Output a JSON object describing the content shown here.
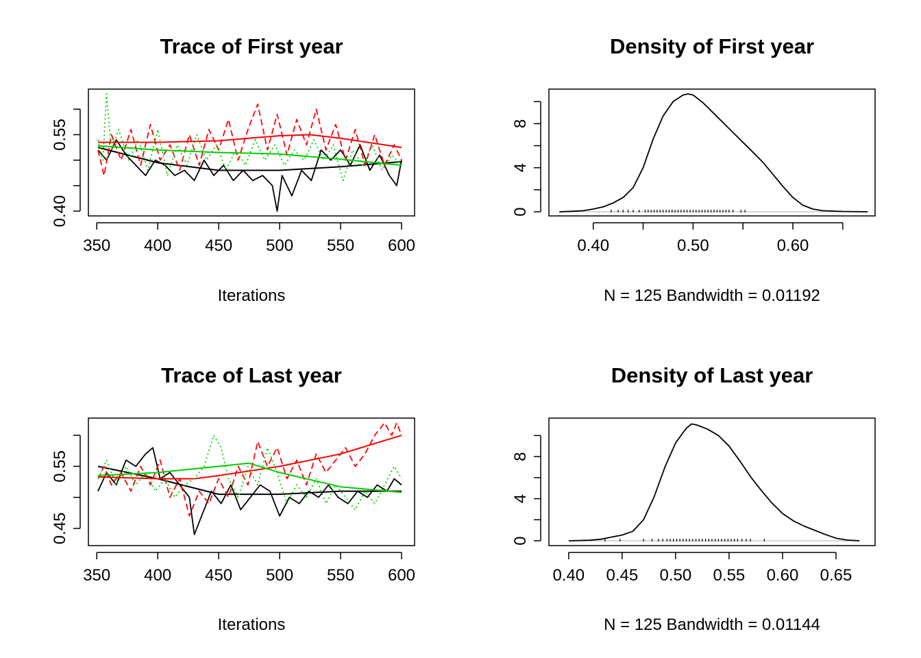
{
  "chart_data": [
    {
      "type": "line",
      "title": "Trace of First year",
      "xlabel": "Iterations",
      "xlim": [
        351,
        600
      ],
      "ylim": [
        0.4,
        0.63
      ],
      "xticks": [
        "350",
        "400",
        "450",
        "500",
        "550",
        "600"
      ],
      "xtick_values": [
        350,
        400,
        450,
        500,
        550,
        600
      ],
      "yticks": [
        "0.40",
        "0.55"
      ],
      "ytick_values": [
        0.4,
        0.55
      ],
      "ytick_marks": [
        0.4,
        0.45,
        0.5,
        0.55,
        0.6
      ],
      "series": [
        {
          "color": "#000000",
          "dash": "solid",
          "x": [
            351,
            358,
            366,
            374,
            382,
            390,
            398,
            406,
            414,
            422,
            430,
            438,
            446,
            454,
            462,
            470,
            478,
            486,
            494,
            498,
            502,
            510,
            518,
            526,
            534,
            542,
            550,
            558,
            566,
            574,
            582,
            590,
            596,
            600
          ],
          "values": [
            0.52,
            0.5,
            0.54,
            0.51,
            0.49,
            0.47,
            0.5,
            0.49,
            0.47,
            0.48,
            0.46,
            0.5,
            0.47,
            0.49,
            0.46,
            0.48,
            0.46,
            0.47,
            0.45,
            0.4,
            0.47,
            0.43,
            0.48,
            0.46,
            0.52,
            0.5,
            0.52,
            0.49,
            0.53,
            0.48,
            0.51,
            0.47,
            0.45,
            0.5
          ],
          "smooth_x": [
            351,
            400,
            450,
            500,
            550,
            600
          ],
          "smooth": [
            0.525,
            0.495,
            0.48,
            0.48,
            0.487,
            0.497
          ]
        },
        {
          "color": "#ff0000",
          "dash": "dashed",
          "x": [
            351,
            356,
            362,
            370,
            378,
            386,
            394,
            402,
            410,
            418,
            426,
            434,
            442,
            450,
            458,
            466,
            474,
            482,
            490,
            498,
            506,
            514,
            522,
            530,
            538,
            546,
            554,
            562,
            570,
            578,
            586,
            594,
            600
          ],
          "values": [
            0.52,
            0.47,
            0.55,
            0.5,
            0.56,
            0.49,
            0.57,
            0.5,
            0.53,
            0.48,
            0.55,
            0.49,
            0.56,
            0.52,
            0.58,
            0.5,
            0.56,
            0.61,
            0.52,
            0.59,
            0.51,
            0.58,
            0.53,
            0.6,
            0.52,
            0.57,
            0.5,
            0.56,
            0.49,
            0.55,
            0.49,
            0.53,
            0.5
          ],
          "smooth_x": [
            351,
            400,
            450,
            500,
            525,
            550,
            600
          ],
          "smooth": [
            0.535,
            0.535,
            0.538,
            0.548,
            0.55,
            0.543,
            0.525
          ]
        },
        {
          "color": "#00cd00",
          "dash": "dotted",
          "x": [
            351,
            355,
            358,
            362,
            368,
            376,
            384,
            392,
            400,
            408,
            416,
            424,
            432,
            440,
            448,
            456,
            464,
            472,
            480,
            488,
            496,
            504,
            512,
            520,
            528,
            536,
            544,
            552,
            560,
            568,
            576,
            584,
            592,
            600
          ],
          "values": [
            0.54,
            0.5,
            0.63,
            0.52,
            0.56,
            0.5,
            0.54,
            0.48,
            0.56,
            0.47,
            0.53,
            0.49,
            0.55,
            0.5,
            0.53,
            0.48,
            0.52,
            0.49,
            0.54,
            0.5,
            0.53,
            0.49,
            0.52,
            0.5,
            0.54,
            0.5,
            0.53,
            0.46,
            0.52,
            0.49,
            0.53,
            0.48,
            0.51,
            0.49
          ],
          "smooth_x": [
            351,
            400,
            450,
            500,
            550,
            600
          ],
          "smooth": [
            0.528,
            0.52,
            0.515,
            0.512,
            0.502,
            0.49
          ]
        }
      ]
    },
    {
      "type": "line",
      "title": "Density of First year",
      "xlabel": "N = 125   Bandwidth = 0.01192",
      "xlim": [
        0.37,
        0.67
      ],
      "ylim": [
        0,
        10.7
      ],
      "xticks": [
        "0.40",
        "0.50",
        "0.60"
      ],
      "xtick_values": [
        0.4,
        0.5,
        0.6
      ],
      "xtick_marks": [
        0.4,
        0.45,
        0.5,
        0.55,
        0.6,
        0.65
      ],
      "yticks": [
        "0",
        "4",
        "8"
      ],
      "ytick_values": [
        0,
        4,
        8
      ],
      "ytick_marks": [
        0,
        2,
        4,
        6,
        8,
        10
      ],
      "series": [
        {
          "color": "#000000",
          "dash": "solid",
          "x": [
            0.366,
            0.38,
            0.39,
            0.4,
            0.41,
            0.42,
            0.43,
            0.44,
            0.45,
            0.46,
            0.47,
            0.48,
            0.49,
            0.495,
            0.5,
            0.51,
            0.52,
            0.53,
            0.54,
            0.55,
            0.56,
            0.57,
            0.58,
            0.59,
            0.6,
            0.61,
            0.62,
            0.63,
            0.65,
            0.675
          ],
          "values": [
            0.0,
            0.05,
            0.1,
            0.25,
            0.45,
            0.8,
            1.3,
            2.2,
            4.0,
            6.6,
            8.7,
            10.0,
            10.6,
            10.7,
            10.6,
            9.9,
            9.0,
            8.1,
            7.2,
            6.3,
            5.4,
            4.5,
            3.4,
            2.3,
            1.3,
            0.6,
            0.25,
            0.1,
            0.03,
            0.0
          ]
        }
      ],
      "rug": [
        0.418,
        0.425,
        0.43,
        0.435,
        0.44,
        0.446,
        0.452,
        0.455,
        0.458,
        0.461,
        0.464,
        0.467,
        0.47,
        0.473,
        0.476,
        0.479,
        0.482,
        0.485,
        0.488,
        0.491,
        0.494,
        0.497,
        0.5,
        0.503,
        0.506,
        0.509,
        0.512,
        0.515,
        0.518,
        0.521,
        0.524,
        0.527,
        0.53,
        0.533,
        0.536,
        0.54,
        0.548,
        0.552
      ]
    },
    {
      "type": "line",
      "title": "Trace of Last year",
      "xlabel": "Iterations",
      "xlim": [
        351,
        600
      ],
      "ylim": [
        0.43,
        0.62
      ],
      "xticks": [
        "350",
        "400",
        "450",
        "500",
        "550",
        "600"
      ],
      "xtick_values": [
        350,
        400,
        450,
        500,
        550,
        600
      ],
      "yticks": [
        "0.45",
        "0.55"
      ],
      "ytick_values": [
        0.45,
        0.55
      ],
      "ytick_marks": [
        0.45,
        0.5,
        0.55,
        0.6
      ],
      "series": [
        {
          "color": "#000000",
          "dash": "solid",
          "x": [
            351,
            358,
            366,
            374,
            382,
            390,
            396,
            402,
            410,
            418,
            426,
            430,
            436,
            444,
            452,
            460,
            468,
            476,
            484,
            492,
            500,
            508,
            516,
            524,
            532,
            540,
            548,
            556,
            564,
            572,
            580,
            588,
            594,
            600
          ],
          "values": [
            0.51,
            0.54,
            0.52,
            0.56,
            0.55,
            0.57,
            0.58,
            0.53,
            0.54,
            0.52,
            0.5,
            0.44,
            0.47,
            0.51,
            0.49,
            0.52,
            0.48,
            0.5,
            0.52,
            0.51,
            0.47,
            0.5,
            0.49,
            0.51,
            0.5,
            0.52,
            0.5,
            0.49,
            0.51,
            0.5,
            0.52,
            0.51,
            0.53,
            0.52
          ],
          "smooth_x": [
            351,
            400,
            450,
            500,
            550,
            600
          ],
          "smooth": [
            0.55,
            0.53,
            0.505,
            0.505,
            0.51,
            0.51
          ]
        },
        {
          "color": "#ff0000",
          "dash": "dashed",
          "x": [
            351,
            356,
            362,
            370,
            378,
            386,
            394,
            402,
            410,
            418,
            426,
            434,
            442,
            450,
            458,
            466,
            474,
            482,
            490,
            498,
            506,
            514,
            522,
            530,
            538,
            546,
            554,
            562,
            570,
            578,
            586,
            592,
            596,
            600
          ],
          "values": [
            0.53,
            0.55,
            0.52,
            0.54,
            0.51,
            0.55,
            0.52,
            0.56,
            0.5,
            0.53,
            0.47,
            0.51,
            0.49,
            0.53,
            0.5,
            0.55,
            0.52,
            0.59,
            0.55,
            0.58,
            0.53,
            0.56,
            0.52,
            0.57,
            0.54,
            0.56,
            0.58,
            0.55,
            0.57,
            0.6,
            0.62,
            0.6,
            0.62,
            0.6
          ],
          "smooth_x": [
            351,
            400,
            430,
            450,
            500,
            550,
            600
          ],
          "smooth": [
            0.533,
            0.53,
            0.53,
            0.535,
            0.55,
            0.57,
            0.6
          ]
        },
        {
          "color": "#00cd00",
          "dash": "dotted",
          "x": [
            351,
            358,
            366,
            374,
            382,
            390,
            398,
            406,
            414,
            422,
            430,
            438,
            446,
            452,
            458,
            466,
            474,
            482,
            490,
            498,
            506,
            514,
            522,
            530,
            538,
            546,
            554,
            562,
            570,
            578,
            586,
            594,
            600
          ],
          "values": [
            0.53,
            0.56,
            0.52,
            0.55,
            0.52,
            0.54,
            0.51,
            0.53,
            0.5,
            0.52,
            0.53,
            0.55,
            0.6,
            0.58,
            0.53,
            0.5,
            0.55,
            0.52,
            0.58,
            0.54,
            0.49,
            0.52,
            0.5,
            0.53,
            0.49,
            0.52,
            0.5,
            0.48,
            0.51,
            0.49,
            0.52,
            0.55,
            0.53
          ],
          "smooth_x": [
            351,
            400,
            450,
            475,
            500,
            550,
            600
          ],
          "smooth": [
            0.535,
            0.54,
            0.55,
            0.555,
            0.54,
            0.517,
            0.508
          ]
        }
      ]
    },
    {
      "type": "line",
      "title": "Density of Last year",
      "xlabel": "N = 125   Bandwidth = 0.01144",
      "xlim": [
        0.395,
        0.675
      ],
      "ylim": [
        0,
        11.2
      ],
      "xticks": [
        "0.40",
        "0.45",
        "0.50",
        "0.55",
        "0.60",
        "0.65"
      ],
      "xtick_values": [
        0.4,
        0.45,
        0.5,
        0.55,
        0.6,
        0.65
      ],
      "yticks": [
        "0",
        "4",
        "8"
      ],
      "ytick_values": [
        0,
        4,
        8
      ],
      "ytick_marks": [
        0,
        2,
        4,
        6,
        8,
        10
      ],
      "series": [
        {
          "color": "#000000",
          "dash": "solid",
          "x": [
            0.4,
            0.42,
            0.43,
            0.44,
            0.45,
            0.46,
            0.47,
            0.48,
            0.49,
            0.5,
            0.51,
            0.515,
            0.52,
            0.53,
            0.54,
            0.55,
            0.56,
            0.57,
            0.58,
            0.59,
            0.6,
            0.61,
            0.62,
            0.63,
            0.64,
            0.65,
            0.66,
            0.672
          ],
          "values": [
            0.0,
            0.05,
            0.15,
            0.35,
            0.55,
            0.9,
            2.0,
            4.2,
            7.0,
            9.3,
            10.7,
            11.1,
            11.0,
            10.6,
            10.0,
            9.0,
            7.6,
            6.1,
            4.8,
            3.6,
            2.6,
            1.9,
            1.4,
            1.0,
            0.6,
            0.25,
            0.07,
            0.0
          ]
        }
      ],
      "rug": [
        0.434,
        0.448,
        0.47,
        0.478,
        0.484,
        0.488,
        0.492,
        0.495,
        0.498,
        0.501,
        0.504,
        0.507,
        0.51,
        0.513,
        0.516,
        0.519,
        0.522,
        0.525,
        0.528,
        0.531,
        0.534,
        0.537,
        0.54,
        0.543,
        0.546,
        0.549,
        0.552,
        0.555,
        0.558,
        0.562,
        0.566,
        0.57,
        0.583
      ]
    }
  ]
}
